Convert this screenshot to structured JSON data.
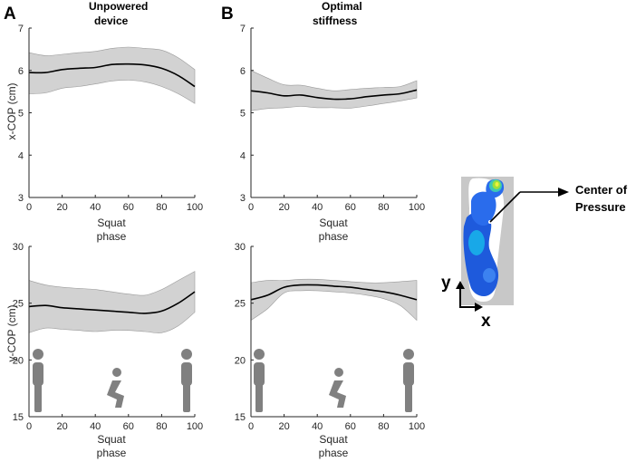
{
  "panel_labels": {
    "a": "A",
    "b": "B"
  },
  "headings": {
    "a_line1": "Unpowered",
    "a_line2": "device",
    "b_line1": "Optimal",
    "b_line2": "stiffness"
  },
  "inset": {
    "annotation_line1": "Center of",
    "annotation_line2": "Pressure",
    "axis_y": "y",
    "axis_x": "x"
  },
  "chart_data": [
    {
      "id": "a-top",
      "type": "line",
      "condition": "Unpowered device",
      "ylabel": "x-COP (cm)",
      "xlabel_line1": "Squat",
      "xlabel_line2": "phase",
      "xlim": [
        0,
        100
      ],
      "ylim": [
        3,
        7
      ],
      "xticks": [
        "0",
        "20",
        "40",
        "60",
        "80",
        "100"
      ],
      "yticks": [
        "3",
        "4",
        "5",
        "6",
        "7"
      ],
      "x": [
        0,
        10,
        20,
        30,
        40,
        50,
        60,
        70,
        80,
        90,
        100
      ],
      "mean": [
        5.95,
        5.95,
        6.02,
        6.05,
        6.07,
        6.14,
        6.15,
        6.13,
        6.05,
        5.88,
        5.62
      ],
      "upper": [
        6.42,
        6.35,
        6.38,
        6.42,
        6.45,
        6.52,
        6.55,
        6.52,
        6.48,
        6.3,
        6.02
      ],
      "lower": [
        5.45,
        5.47,
        5.58,
        5.62,
        5.68,
        5.75,
        5.77,
        5.73,
        5.62,
        5.45,
        5.22
      ]
    },
    {
      "id": "b-top",
      "type": "line",
      "condition": "Optimal stiffness",
      "ylabel": "",
      "xlabel_line1": "Squat",
      "xlabel_line2": "phase",
      "xlim": [
        0,
        100
      ],
      "ylim": [
        3,
        7
      ],
      "xticks": [
        "0",
        "20",
        "40",
        "60",
        "80",
        "100"
      ],
      "yticks": [
        "3",
        "4",
        "5",
        "6",
        "7"
      ],
      "x": [
        0,
        10,
        20,
        30,
        40,
        50,
        60,
        70,
        80,
        90,
        100
      ],
      "mean": [
        5.52,
        5.47,
        5.4,
        5.42,
        5.36,
        5.32,
        5.33,
        5.38,
        5.42,
        5.45,
        5.54
      ],
      "upper": [
        6.0,
        5.82,
        5.66,
        5.65,
        5.58,
        5.52,
        5.55,
        5.58,
        5.6,
        5.62,
        5.76
      ],
      "lower": [
        5.05,
        5.1,
        5.12,
        5.15,
        5.12,
        5.12,
        5.11,
        5.16,
        5.22,
        5.28,
        5.35
      ]
    },
    {
      "id": "a-bottom",
      "type": "line",
      "condition": "Unpowered device",
      "ylabel": "y-COP (cm)",
      "xlabel_line1": "Squat",
      "xlabel_line2": "phase",
      "xlim": [
        0,
        100
      ],
      "ylim": [
        15,
        30
      ],
      "xticks": [
        "0",
        "20",
        "40",
        "60",
        "80",
        "100"
      ],
      "yticks": [
        "15",
        "20",
        "25",
        "30"
      ],
      "x": [
        0,
        10,
        20,
        30,
        40,
        50,
        60,
        70,
        80,
        90,
        100
      ],
      "mean": [
        24.7,
        24.8,
        24.6,
        24.5,
        24.4,
        24.3,
        24.2,
        24.1,
        24.3,
        25.0,
        26.0
      ],
      "upper": [
        27.0,
        26.6,
        26.4,
        26.3,
        26.2,
        26.0,
        25.8,
        25.7,
        26.2,
        27.0,
        27.8
      ],
      "lower": [
        22.4,
        22.8,
        22.7,
        22.6,
        22.5,
        22.6,
        22.6,
        22.5,
        22.4,
        23.0,
        24.2
      ]
    },
    {
      "id": "b-bottom",
      "type": "line",
      "condition": "Optimal stiffness",
      "ylabel": "",
      "xlabel_line1": "Squat",
      "xlabel_line2": "phase",
      "xlim": [
        0,
        100
      ],
      "ylim": [
        15,
        30
      ],
      "xticks": [
        "0",
        "20",
        "40",
        "60",
        "80",
        "100"
      ],
      "yticks": [
        "15",
        "20",
        "25",
        "30"
      ],
      "x": [
        0,
        10,
        20,
        30,
        40,
        50,
        60,
        70,
        80,
        90,
        100
      ],
      "mean": [
        25.3,
        25.7,
        26.4,
        26.6,
        26.6,
        26.5,
        26.4,
        26.2,
        26.0,
        25.7,
        25.3
      ],
      "upper": [
        26.8,
        27.0,
        27.0,
        27.1,
        27.1,
        27.0,
        26.9,
        26.8,
        26.8,
        26.9,
        27.0
      ],
      "lower": [
        23.5,
        24.5,
        25.9,
        26.1,
        26.1,
        26.0,
        25.9,
        25.7,
        25.4,
        24.8,
        23.5
      ]
    }
  ],
  "colors": {
    "band": "#d2d2d2",
    "band_edge": "#9a9a9a",
    "line": "#000000",
    "axis": "#262626",
    "figure": "#808080",
    "insole": "#c8c8c8"
  }
}
